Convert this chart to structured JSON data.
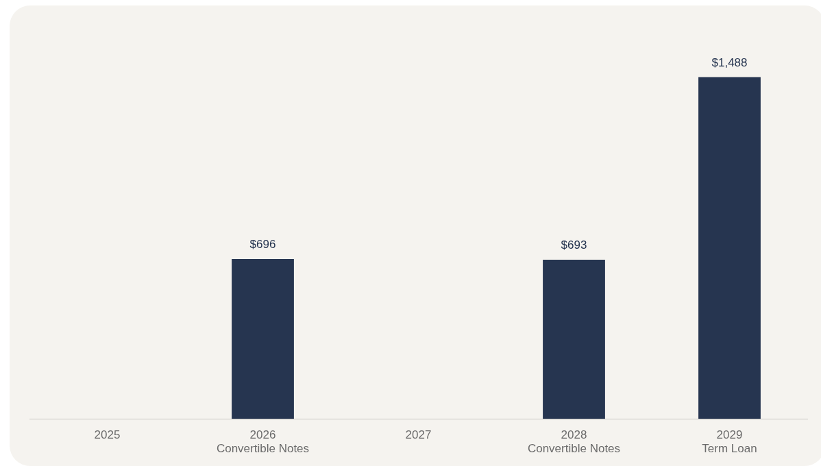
{
  "chart_data": {
    "type": "bar",
    "categories": [
      "2025",
      "2026\nConvertible Notes",
      "2027",
      "2028\nConvertible Notes",
      "2029\nTerm Loan"
    ],
    "values": [
      null,
      696,
      null,
      693,
      1488
    ],
    "color": "#263550",
    "value_labels": [
      null,
      "$696",
      null,
      "$693",
      "$1,488"
    ],
    "grid": false,
    "legend": false
  }
}
